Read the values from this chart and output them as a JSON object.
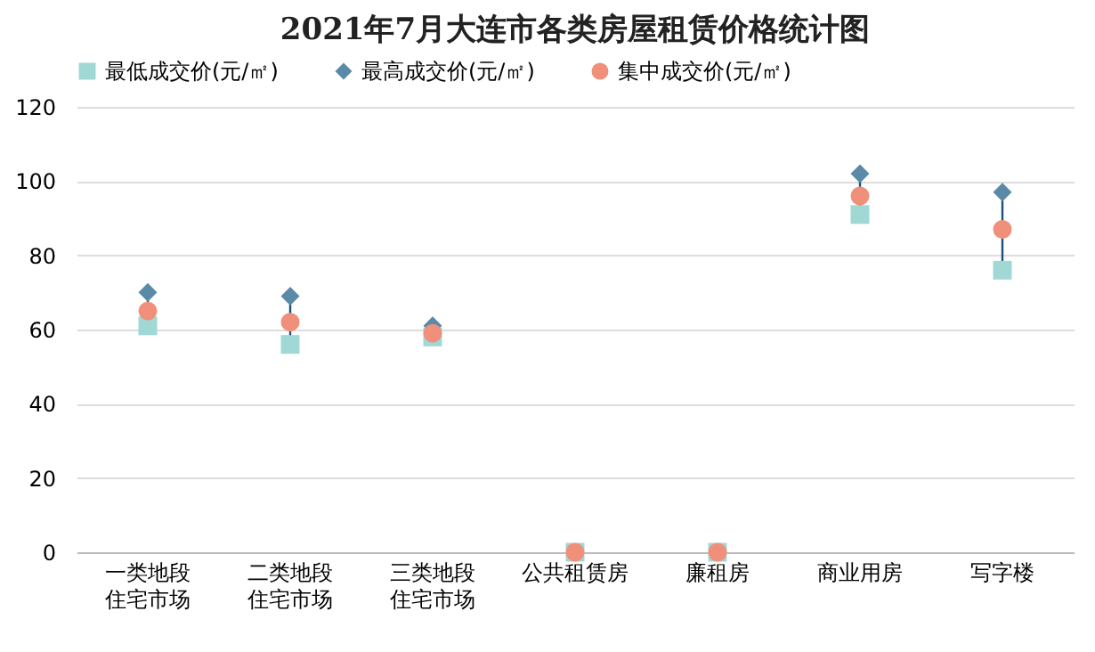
{
  "chart_data": {
    "type": "scatter",
    "title": "2021年7月大连市各类房屋租赁价格统计图",
    "categories": [
      "一类地段住宅市场",
      "二类地段住宅市场",
      "三类地段住宅市场",
      "公共租赁房",
      "廉租房",
      "商业用房",
      "写字楼"
    ],
    "series": [
      {
        "name": "最低成交价(元/㎡)",
        "color": "#a0d8d5",
        "marker": "square",
        "values": [
          61,
          56,
          58,
          0,
          0,
          91,
          76
        ]
      },
      {
        "name": "最高成交价(元/㎡)",
        "color": "#5b8aa8",
        "marker": "diamond",
        "values": [
          70,
          69,
          61,
          null,
          null,
          102,
          97
        ]
      },
      {
        "name": "集中成交价(元/㎡)",
        "color": "#f0907a",
        "marker": "circle",
        "values": [
          65,
          62,
          59,
          0,
          0,
          96,
          87
        ]
      }
    ],
    "ylim": [
      0,
      120
    ],
    "yticks": [
      0,
      20,
      40,
      60,
      80,
      100,
      120
    ],
    "grid": "y",
    "legend": "top"
  }
}
